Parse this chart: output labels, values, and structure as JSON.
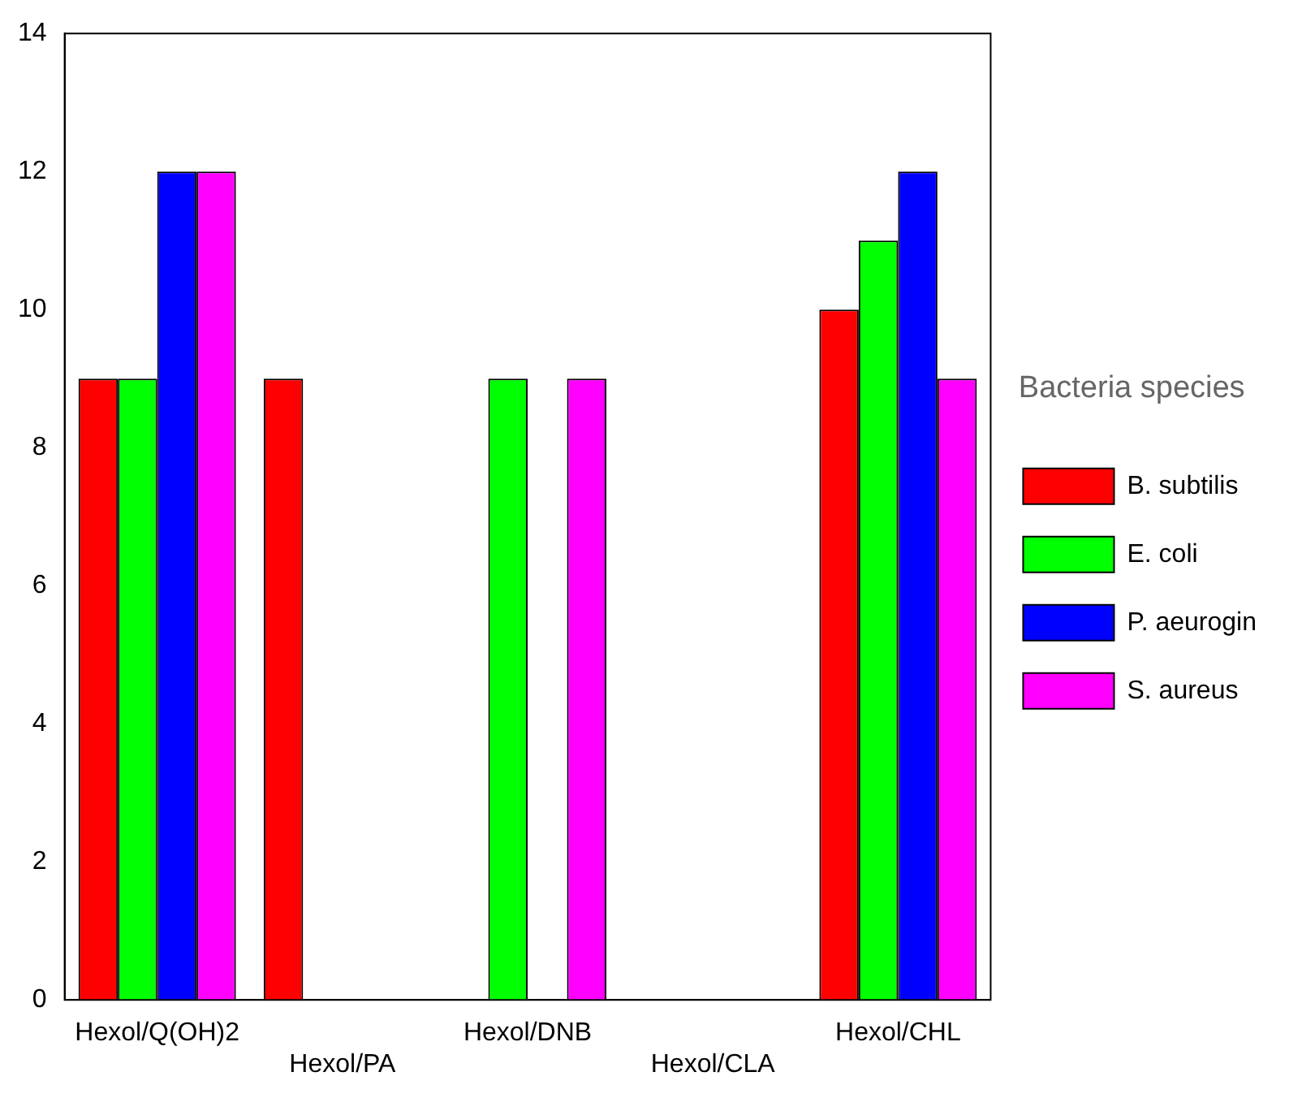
{
  "chart_data": {
    "type": "bar",
    "categories": [
      "Hexol/Q(OH)2",
      "Hexol/PA",
      "Hexol/DNB",
      "Hexol/CLA",
      "Hexol/CHL"
    ],
    "series": [
      {
        "name": "B. subtilis",
        "color": "#ff0000",
        "values": [
          9,
          9,
          0,
          0,
          10
        ]
      },
      {
        "name": "E. coli",
        "color": "#00ff00",
        "values": [
          9,
          0,
          9,
          0,
          11
        ]
      },
      {
        "name": "P. aeurogin",
        "color": "#0000ff",
        "values": [
          12,
          0,
          0,
          0,
          12
        ]
      },
      {
        "name": "S. aureus",
        "color": "#ff00ff",
        "values": [
          12,
          0,
          9,
          0,
          9
        ]
      }
    ],
    "ylim": [
      0,
      14
    ],
    "yticks": [
      0,
      2,
      4,
      6,
      8,
      10,
      12,
      14
    ],
    "grid": false,
    "legend": "right",
    "legend_title": "Bacteria species"
  }
}
